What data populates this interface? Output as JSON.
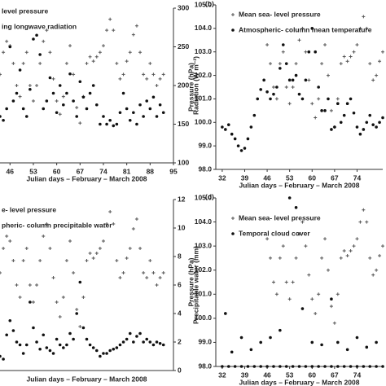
{
  "chart_data": [
    {
      "type": "scatter",
      "xlabel": "Julian days – February – March 2008",
      "y2label": "Radiation (W m⁻²)",
      "xlim": [
        43,
        95
      ],
      "xticks": [
        46,
        53,
        60,
        67,
        74,
        81,
        88,
        95
      ],
      "ylim": [
        98,
        105
      ],
      "y2lim": [
        100,
        300
      ],
      "y2ticks": [
        100,
        150,
        200,
        250,
        300
      ],
      "series": [
        {
          "name": "level pressure",
          "color": "#555555",
          "marker": "plus",
          "x": [
            43,
            44,
            45,
            46,
            47,
            48,
            49,
            50,
            51,
            52,
            53,
            54,
            55,
            56,
            57,
            58,
            59,
            60,
            61,
            62,
            63,
            64,
            65,
            66,
            67,
            68,
            69,
            70,
            71,
            72,
            73,
            74,
            75,
            76,
            77,
            78,
            79,
            80,
            81,
            82,
            83,
            84,
            85,
            86,
            87,
            88,
            89,
            90,
            91,
            92
          ],
          "values": [
            102.0,
            103.0,
            103.5,
            103.3,
            102.5,
            101.5,
            101.0,
            102.5,
            103.0,
            101.5,
            100.8,
            101.5,
            102.5,
            103.5,
            104.0,
            103.0,
            101.8,
            100.8,
            100.2,
            101.0,
            102.5,
            103.3,
            102.0,
            100.5,
            99.8,
            101.0,
            102.5,
            102.8,
            102.6,
            102.8,
            103.0,
            103.3,
            104.0,
            104.5,
            104.0,
            102.5,
            101.8,
            102.0,
            102.6,
            103.0,
            103.8,
            104.2,
            103.0,
            102.0,
            101.8,
            102.5,
            102.0,
            101.5,
            101.8,
            102.0
          ]
        },
        {
          "name": "ing longwave radiation",
          "color": "#111111",
          "marker": "dot",
          "axis": "y2",
          "x": [
            43,
            44,
            45,
            46,
            47,
            48,
            49,
            50,
            51,
            52,
            53,
            54,
            55,
            56,
            57,
            58,
            59,
            60,
            61,
            62,
            63,
            64,
            65,
            66,
            67,
            68,
            69,
            70,
            71,
            72,
            73,
            74,
            75,
            76,
            77,
            78,
            79,
            80,
            81,
            82,
            83,
            84,
            85,
            86,
            87,
            88,
            89,
            90,
            91,
            92
          ],
          "values": [
            160,
            155,
            170,
            250,
            180,
            190,
            220,
            170,
            160,
            195,
            260,
            265,
            240,
            170,
            180,
            210,
            190,
            165,
            200,
            175,
            190,
            215,
            180,
            160,
            205,
            185,
            170,
            190,
            200,
            175,
            150,
            160,
            150,
            155,
            148,
            150,
            165,
            190,
            170,
            155,
            165,
            150,
            175,
            160,
            180,
            170,
            185,
            160,
            175,
            165
          ]
        }
      ]
    },
    {
      "type": "scatter",
      "panel_label": "(b)",
      "xlabel": "Julian days – February – March 2008",
      "ylabel": "Pressure (hPa)",
      "xlim": [
        30,
        82
      ],
      "xticks": [
        32,
        39,
        46,
        53,
        60,
        67,
        74
      ],
      "ylim": [
        98,
        105
      ],
      "yticks": [
        {
          "value": 98,
          "label": "98.0"
        },
        {
          "value": 99,
          "label": "99.0"
        },
        {
          "value": 100,
          "label": "100.0"
        },
        {
          "value": 101,
          "label": "101.0"
        },
        {
          "value": 102,
          "label": "102.0"
        },
        {
          "value": 103,
          "label": "103.0"
        },
        {
          "value": 104,
          "label": "104.0"
        },
        {
          "value": 105,
          "label": "105.0"
        }
      ],
      "series": [
        {
          "name": "Mean sea- level pressure",
          "color": "#555555",
          "marker": "plus",
          "x": [
            46,
            47,
            48,
            49,
            50,
            51,
            52,
            53,
            54,
            55,
            56,
            57,
            58,
            59,
            60,
            61,
            62,
            63,
            64,
            65,
            66,
            67,
            68,
            69,
            70,
            71,
            72,
            73,
            74,
            75,
            76,
            77,
            78,
            79,
            80,
            81,
            82
          ],
          "values": [
            103.3,
            102.5,
            101.5,
            101.0,
            102.5,
            103.0,
            101.5,
            100.8,
            101.5,
            102.5,
            103.5,
            104.0,
            103.0,
            101.8,
            100.8,
            100.2,
            101.0,
            102.5,
            103.3,
            102.0,
            100.5,
            99.8,
            101.0,
            102.5,
            102.8,
            102.6,
            102.8,
            103.0,
            103.3,
            104.0,
            104.5,
            104.0,
            102.5,
            101.8,
            102.0,
            102.6,
            103.0
          ]
        },
        {
          "name": "Atmospheric- column mean temperature",
          "color": "#111111",
          "marker": "dot",
          "x": [
            32,
            33,
            34,
            35,
            36,
            37,
            38,
            39,
            40,
            41,
            42,
            43,
            44,
            45,
            46,
            47,
            48,
            49,
            50,
            51,
            52,
            53,
            54,
            55,
            56,
            57,
            58,
            59,
            60,
            61,
            62,
            63,
            64,
            65,
            66,
            67,
            68,
            69,
            70,
            71,
            72,
            73,
            74,
            75,
            76,
            77,
            78,
            79,
            80,
            81,
            82
          ],
          "values": [
            99.8,
            99.7,
            99.9,
            99.5,
            99.3,
            99.0,
            98.8,
            98.9,
            99.3,
            99.8,
            100.3,
            101.0,
            101.4,
            101.8,
            101.3,
            101.0,
            101.2,
            101.5,
            102.3,
            103.3,
            102.5,
            101.8,
            101.8,
            102.0,
            101.2,
            101.0,
            101.8,
            103.0,
            104.0,
            103.0,
            101.5,
            100.5,
            100.5,
            101.0,
            99.7,
            99.8,
            100.8,
            100.0,
            100.3,
            100.8,
            101.0,
            100.4,
            99.8,
            99.5,
            99.7,
            100.0,
            100.3,
            99.9,
            99.8,
            100.0,
            100.2
          ]
        }
      ]
    },
    {
      "type": "scatter",
      "xlabel": "Julian days – February – March 2008",
      "y2label": "Precipitable  water (mm)",
      "xlim": [
        43,
        95
      ],
      "ylim": [
        98,
        105
      ],
      "y2lim": [
        0,
        12
      ],
      "y2ticks": [
        0,
        2,
        4,
        6,
        8,
        10,
        12
      ],
      "series": [
        {
          "name": "e- level pressure",
          "color": "#555555",
          "marker": "plus",
          "x": [
            43,
            44,
            45,
            46,
            47,
            48,
            49,
            50,
            51,
            52,
            53,
            54,
            55,
            56,
            57,
            58,
            59,
            60,
            61,
            62,
            63,
            64,
            65,
            66,
            67,
            68,
            69,
            70,
            71,
            72,
            73,
            74,
            75,
            76,
            77,
            78,
            79,
            80,
            81,
            82,
            83,
            84,
            85,
            86,
            87,
            88,
            89,
            90,
            91,
            92
          ],
          "values": [
            102.0,
            103.0,
            103.5,
            103.3,
            102.5,
            101.5,
            101.0,
            102.5,
            103.0,
            101.5,
            100.8,
            101.5,
            102.5,
            103.5,
            104.0,
            103.0,
            101.8,
            100.8,
            100.2,
            101.0,
            102.5,
            103.3,
            102.0,
            100.5,
            99.8,
            101.0,
            102.5,
            102.8,
            102.6,
            102.8,
            103.0,
            103.3,
            104.0,
            104.5,
            104.0,
            102.5,
            101.8,
            102.0,
            102.6,
            103.0,
            103.8,
            104.2,
            103.0,
            102.0,
            101.8,
            102.5,
            102.0,
            101.5,
            101.8,
            102.0
          ]
        },
        {
          "name": "pheric- column precipitable water",
          "color": "#111111",
          "marker": "dot",
          "axis": "y2",
          "x": [
            43,
            44,
            45,
            46,
            47,
            48,
            49,
            50,
            51,
            52,
            53,
            54,
            55,
            56,
            57,
            58,
            59,
            60,
            61,
            62,
            63,
            64,
            65,
            66,
            67,
            68,
            69,
            70,
            71,
            72,
            73,
            74,
            75,
            76,
            77,
            78,
            79,
            80,
            81,
            82,
            83,
            84,
            85,
            86,
            87,
            88,
            89,
            90,
            91,
            92
          ],
          "values": [
            1.0,
            0.8,
            2.5,
            3.5,
            2.8,
            2.0,
            1.8,
            1.2,
            1.8,
            4.8,
            3.0,
            2.0,
            1.5,
            2.5,
            1.6,
            1.4,
            1.2,
            2.2,
            1.8,
            1.6,
            1.8,
            2.6,
            2.2,
            4.0,
            6.2,
            3.0,
            2.2,
            1.8,
            1.6,
            1.4,
            1.0,
            1.2,
            1.2,
            1.4,
            1.5,
            1.6,
            1.8,
            2.0,
            2.2,
            2.6,
            2.0,
            2.4,
            2.6,
            2.0,
            2.2,
            2.0,
            1.8,
            2.0,
            1.9,
            1.8
          ]
        }
      ]
    },
    {
      "type": "scatter",
      "panel_label": "(d)",
      "xlabel": "Julian days – February – March 2008",
      "ylabel": "Pressure (hPa)",
      "xlim": [
        30,
        82
      ],
      "xticks": [
        32,
        39,
        46,
        53,
        60,
        67,
        74
      ],
      "ylim": [
        98,
        105
      ],
      "yticks": [
        {
          "value": 98,
          "label": "98.0"
        },
        {
          "value": 99,
          "label": "99.0"
        },
        {
          "value": 100,
          "label": "100.0"
        },
        {
          "value": 101,
          "label": "101.0"
        },
        {
          "value": 102,
          "label": "102.0"
        },
        {
          "value": 103,
          "label": "103.0"
        },
        {
          "value": 104,
          "label": "104.0"
        },
        {
          "value": 105,
          "label": "105.0"
        }
      ],
      "series": [
        {
          "name": "Mean sea- level pressure",
          "color": "#555555",
          "marker": "plus",
          "x": [
            46,
            47,
            48,
            49,
            50,
            51,
            52,
            53,
            54,
            55,
            56,
            57,
            58,
            59,
            60,
            61,
            62,
            63,
            64,
            65,
            66,
            67,
            68,
            69,
            70,
            71,
            72,
            73,
            74,
            75,
            76,
            77,
            78,
            79,
            80,
            81,
            82
          ],
          "values": [
            103.3,
            102.5,
            101.5,
            101.0,
            102.5,
            103.0,
            101.5,
            100.8,
            101.5,
            102.5,
            103.5,
            104.0,
            103.0,
            101.8,
            100.8,
            100.2,
            101.0,
            102.5,
            103.3,
            102.0,
            100.5,
            99.8,
            101.0,
            102.5,
            102.8,
            102.6,
            102.8,
            103.0,
            103.3,
            104.0,
            104.5,
            104.0,
            102.5,
            101.8,
            102.0,
            102.6,
            103.0
          ]
        },
        {
          "name": "Temporal cloud cover",
          "color": "#111111",
          "marker": "dot",
          "x": [
            32,
            34,
            36,
            38,
            40,
            42,
            44,
            46,
            48,
            50,
            52,
            54,
            56,
            58,
            60,
            62,
            64,
            66,
            68,
            70,
            72,
            74,
            76,
            78,
            80,
            82,
            33,
            35,
            38,
            41,
            44,
            47,
            50,
            53,
            55,
            57,
            60,
            63,
            66,
            68,
            71,
            74,
            77,
            80
          ],
          "values": [
            98.0,
            98.0,
            98.0,
            98.0,
            98.0,
            98.0,
            98.0,
            98.0,
            98.0,
            98.0,
            98.0,
            98.0,
            98.0,
            98.0,
            98.0,
            98.0,
            98.0,
            98.0,
            98.0,
            98.0,
            98.0,
            98.0,
            98.0,
            98.0,
            98.0,
            98.0,
            100.2,
            98.6,
            99.2,
            98.7,
            99.0,
            99.2,
            99.5,
            105.0,
            104.6,
            100.4,
            99.0,
            98.9,
            100.8,
            99.0,
            98.7,
            99.2,
            98.8,
            99.0
          ]
        }
      ]
    }
  ]
}
